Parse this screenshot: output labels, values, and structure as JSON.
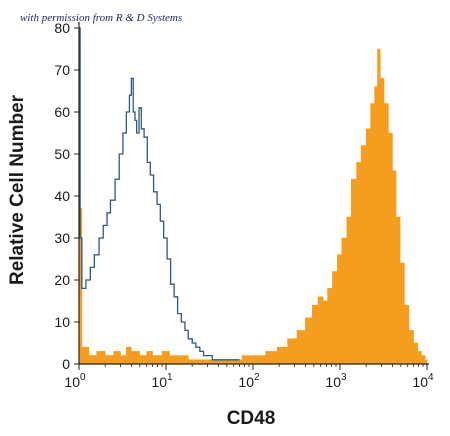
{
  "watermark": "with permission from R & D Systems",
  "chart_data": {
    "type": "histogram",
    "xlabel": "CD48",
    "ylabel": "Relative Cell Number",
    "x_scale": "log",
    "xlim": [
      1,
      10000
    ],
    "ylim": [
      0,
      80
    ],
    "y_ticks": [
      0,
      10,
      20,
      30,
      40,
      50,
      60,
      70,
      80
    ],
    "x_ticks": [
      {
        "value": 1,
        "base": "10",
        "exp": "0"
      },
      {
        "value": 10,
        "base": "10",
        "exp": "1"
      },
      {
        "value": 100,
        "base": "10",
        "exp": "2"
      },
      {
        "value": 1000,
        "base": "10",
        "exp": "3"
      },
      {
        "value": 10000,
        "base": "10",
        "exp": "4"
      }
    ],
    "grid": false,
    "series": [
      {
        "style": "filled",
        "color": "#f59d1e",
        "points": [
          [
            1,
            37
          ],
          [
            1.08,
            4
          ],
          [
            1.3,
            2
          ],
          [
            1.6,
            3
          ],
          [
            2,
            2
          ],
          [
            2.5,
            3
          ],
          [
            3,
            2
          ],
          [
            3.5,
            4
          ],
          [
            4,
            3
          ],
          [
            5,
            2
          ],
          [
            6,
            3
          ],
          [
            7,
            2
          ],
          [
            9,
            3
          ],
          [
            11,
            2
          ],
          [
            14,
            2
          ],
          [
            18,
            1
          ],
          [
            23,
            1
          ],
          [
            30,
            1
          ],
          [
            40,
            1
          ],
          [
            55,
            1
          ],
          [
            75,
            2
          ],
          [
            100,
            2
          ],
          [
            140,
            3
          ],
          [
            190,
            4
          ],
          [
            250,
            6
          ],
          [
            320,
            8
          ],
          [
            400,
            11
          ],
          [
            480,
            14
          ],
          [
            560,
            16
          ],
          [
            640,
            15
          ],
          [
            720,
            18
          ],
          [
            820,
            22
          ],
          [
            930,
            26
          ],
          [
            1050,
            30
          ],
          [
            1200,
            35
          ],
          [
            1350,
            44
          ],
          [
            1550,
            48
          ],
          [
            1750,
            52
          ],
          [
            2000,
            56
          ],
          [
            2250,
            62
          ],
          [
            2500,
            66
          ],
          [
            2700,
            75
          ],
          [
            2900,
            68
          ],
          [
            3200,
            62
          ],
          [
            3600,
            55
          ],
          [
            4000,
            46
          ],
          [
            4400,
            35
          ],
          [
            4900,
            24
          ],
          [
            5500,
            14
          ],
          [
            6200,
            8
          ],
          [
            7000,
            5
          ],
          [
            7800,
            3
          ],
          [
            8600,
            2
          ],
          [
            9500,
            1
          ],
          [
            10000,
            0
          ]
        ]
      },
      {
        "style": "outline",
        "color": "#2b5b84",
        "points": [
          [
            1,
            80
          ],
          [
            1.03,
            30
          ],
          [
            1.08,
            18
          ],
          [
            1.2,
            20
          ],
          [
            1.35,
            23
          ],
          [
            1.5,
            26
          ],
          [
            1.7,
            30
          ],
          [
            1.9,
            33
          ],
          [
            2.1,
            36
          ],
          [
            2.3,
            39
          ],
          [
            2.6,
            44
          ],
          [
            2.9,
            50
          ],
          [
            3.2,
            55
          ],
          [
            3.5,
            60
          ],
          [
            3.8,
            64
          ],
          [
            4.0,
            68
          ],
          [
            4.2,
            60
          ],
          [
            4.4,
            58
          ],
          [
            4.6,
            55
          ],
          [
            4.9,
            61
          ],
          [
            5.2,
            56
          ],
          [
            5.6,
            54
          ],
          [
            6.1,
            48
          ],
          [
            6.6,
            45
          ],
          [
            7.2,
            41
          ],
          [
            7.9,
            38
          ],
          [
            8.6,
            34
          ],
          [
            9.4,
            30
          ],
          [
            10.3,
            25
          ],
          [
            11.3,
            19
          ],
          [
            12.4,
            16
          ],
          [
            13.6,
            12
          ],
          [
            15,
            10
          ],
          [
            16.5,
            8
          ],
          [
            18,
            6
          ],
          [
            20,
            5
          ],
          [
            22,
            4
          ],
          [
            24.5,
            3
          ],
          [
            27,
            2
          ],
          [
            30,
            2
          ],
          [
            34,
            1
          ],
          [
            40,
            1
          ],
          [
            50,
            1
          ],
          [
            70,
            1
          ]
        ]
      }
    ]
  }
}
